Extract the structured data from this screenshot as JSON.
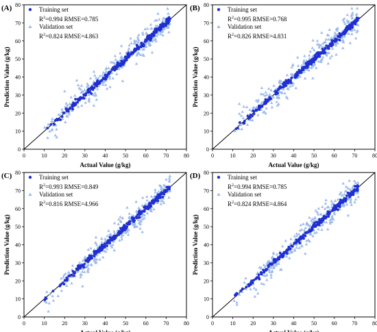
{
  "chart_data": [
    {
      "type": "scatter",
      "panel_label": "(A)",
      "xlabel": "Actual Value (g/kg)",
      "ylabel": "Prediction Value (g/kg)",
      "xlim": [
        0,
        80
      ],
      "ylim": [
        0,
        80
      ],
      "xticks": [
        0,
        10,
        20,
        30,
        40,
        50,
        60,
        70,
        80
      ],
      "yticks": [
        0,
        10,
        20,
        30,
        40,
        50,
        60,
        70,
        80
      ],
      "reference_line": "1:1",
      "legend_position": "top-left",
      "series": [
        {
          "name": "Training set",
          "marker": "circle",
          "color": "#1f2fd1",
          "stats": {
            "r2": "0.994",
            "rmse": "0.785"
          }
        },
        {
          "name": "Validation set",
          "marker": "triangle",
          "color": "#9ab8e8",
          "stats": {
            "r2": "0.824",
            "rmse": "4.863"
          }
        }
      ]
    },
    {
      "type": "scatter",
      "panel_label": "(B)",
      "xlabel": "Actual Value (g/kg)",
      "ylabel": "Prediction Value (g/kg)",
      "xlim": [
        0,
        80
      ],
      "ylim": [
        0,
        80
      ],
      "xticks": [
        0,
        10,
        20,
        30,
        40,
        50,
        60,
        70,
        80
      ],
      "yticks": [
        0,
        10,
        20,
        30,
        40,
        50,
        60,
        70,
        80
      ],
      "reference_line": "1:1",
      "legend_position": "top-left",
      "series": [
        {
          "name": "Training set",
          "marker": "circle",
          "color": "#1f2fd1",
          "stats": {
            "r2": "0.995",
            "rmse": "0.768"
          }
        },
        {
          "name": "Validation set",
          "marker": "triangle",
          "color": "#9ab8e8",
          "stats": {
            "r2": "0.826",
            "rmse": "4.831"
          }
        }
      ]
    },
    {
      "type": "scatter",
      "panel_label": "(C)",
      "xlabel": "Actual Value (g/kg)",
      "ylabel": "Prediction Value (g/kg)",
      "xlim": [
        0,
        80
      ],
      "ylim": [
        0,
        80
      ],
      "xticks": [
        0,
        10,
        20,
        30,
        40,
        50,
        60,
        70,
        80
      ],
      "yticks": [
        0,
        10,
        20,
        30,
        40,
        50,
        60,
        70,
        80
      ],
      "reference_line": "1:1",
      "legend_position": "top-left",
      "series": [
        {
          "name": "Training set",
          "marker": "circle",
          "color": "#1f2fd1",
          "stats": {
            "r2": "0.993",
            "rmse": "0.849"
          }
        },
        {
          "name": "Validation set",
          "marker": "triangle",
          "color": "#9ab8e8",
          "stats": {
            "r2": "0.816",
            "rmse": "4.966"
          }
        }
      ]
    },
    {
      "type": "scatter",
      "panel_label": "(D)",
      "xlabel": "Actual Value (g/kg)",
      "ylabel": "Prediction Value (g/kg)",
      "xlim": [
        0,
        80
      ],
      "ylim": [
        0,
        80
      ],
      "xticks": [
        0,
        10,
        20,
        30,
        40,
        50,
        60,
        70,
        80
      ],
      "yticks": [
        0,
        10,
        20,
        30,
        40,
        50,
        60,
        70,
        80
      ],
      "reference_line": "1:1",
      "legend_position": "top-left",
      "series": [
        {
          "name": "Training set",
          "marker": "circle",
          "color": "#1f2fd1",
          "stats": {
            "r2": "0.994",
            "rmse": "0.785"
          }
        },
        {
          "name": "Validation set",
          "marker": "triangle",
          "color": "#9ab8e8",
          "stats": {
            "r2": "0.824",
            "rmse": "4.864"
          }
        }
      ]
    }
  ]
}
